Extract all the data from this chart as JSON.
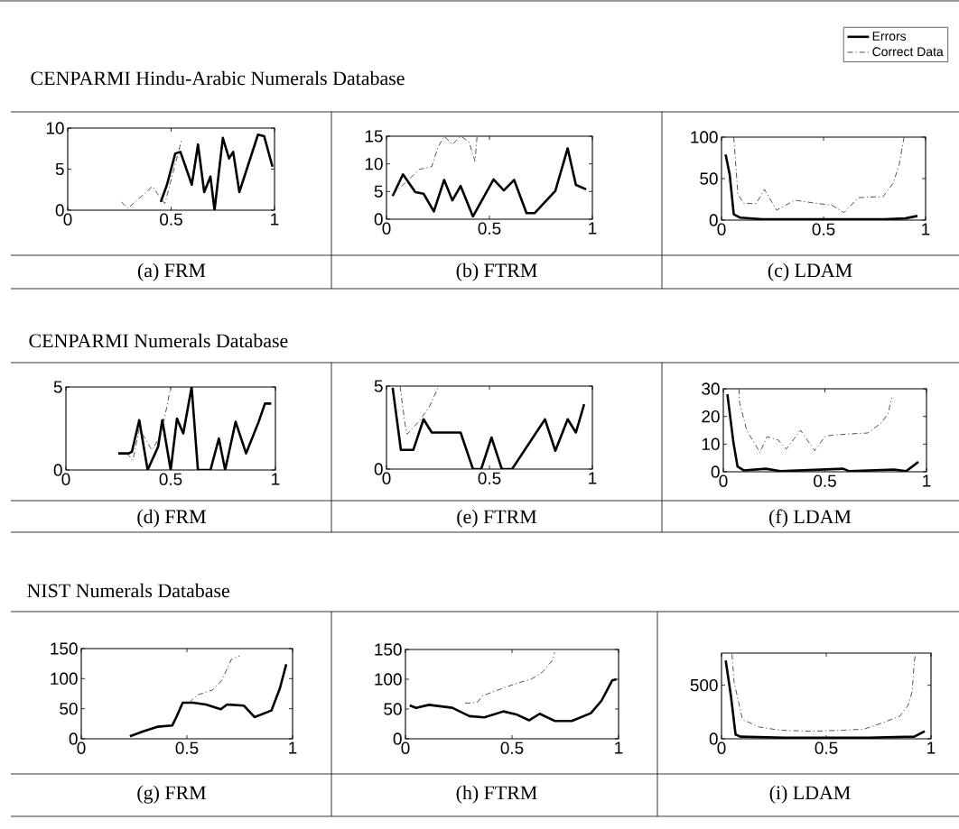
{
  "chart_data": [
    {
      "type": "line",
      "title": "CENPARMI Hindu-Arabic Numerals Database",
      "xlabel": "(a)  FRM",
      "xlim": [
        0,
        1
      ],
      "xticks": [
        0,
        0.5,
        1
      ],
      "ylim": [
        0,
        10
      ],
      "yticks": [
        0,
        5,
        10
      ],
      "series": [
        {
          "color": "#000000",
          "line_style": "solid",
          "x": [
            0.45,
            0.48,
            0.52,
            0.545,
            0.6,
            0.63,
            0.66,
            0.69,
            0.71,
            0.75,
            0.78,
            0.8,
            0.83,
            0.92,
            0.95,
            0.99
          ],
          "values": [
            1,
            3.1,
            6.9,
            7.1,
            3.1,
            8,
            2.2,
            4.1,
            0,
            8.8,
            6.3,
            7.1,
            2.2,
            9.2,
            9,
            5.3
          ]
        },
        {
          "color": "#404040",
          "line_style": "dashdot",
          "x": [
            0.26,
            0.29,
            0.41,
            0.44,
            0.47,
            0.55
          ],
          "values": [
            1,
            0.2,
            2.9,
            1.8,
            0.8,
            8.5
          ]
        }
      ]
    },
    {
      "type": "line",
      "xlabel": "(b)  FTRM",
      "xlim": [
        0,
        1
      ],
      "xticks": [
        0,
        0.5,
        1
      ],
      "ylim": [
        0,
        15
      ],
      "yticks": [
        0,
        5,
        10,
        15
      ],
      "series": [
        {
          "color": "#000000",
          "line_style": "solid",
          "x": [
            0.03,
            0.08,
            0.14,
            0.18,
            0.23,
            0.28,
            0.32,
            0.36,
            0.42,
            0.52,
            0.57,
            0.62,
            0.68,
            0.72,
            0.82,
            0.88,
            0.92,
            0.97
          ],
          "values": [
            4.2,
            8.1,
            4.9,
            4.6,
            1.4,
            7.1,
            3.4,
            6,
            0.5,
            7.2,
            5.2,
            7.1,
            1.1,
            1.1,
            5.1,
            12.8,
            6.2,
            5.4
          ]
        },
        {
          "color": "#404040",
          "line_style": "dashdot",
          "x": [
            0.03,
            0.06,
            0.16,
            0.22,
            0.25,
            0.28,
            0.32,
            0.36,
            0.4,
            0.43,
            0.44
          ],
          "values": [
            4.5,
            5.5,
            9,
            9.5,
            13,
            15,
            13.5,
            15,
            14,
            10.5,
            15
          ]
        }
      ]
    },
    {
      "type": "line",
      "xlabel": "(c)  LDAM",
      "legend": "top right",
      "xlim": [
        0,
        1
      ],
      "xticks": [
        0,
        0.5,
        1
      ],
      "ylim": [
        0,
        100
      ],
      "yticks": [
        0,
        50,
        100
      ],
      "series": [
        {
          "name": "Errors",
          "color": "#000000",
          "line_style": "solid",
          "x": [
            0.02,
            0.04,
            0.06,
            0.09,
            0.2,
            0.4,
            0.6,
            0.8,
            0.9,
            0.96
          ],
          "values": [
            79,
            55,
            7,
            3,
            1,
            1,
            1,
            1,
            2,
            5
          ]
        },
        {
          "name": "Correct Data",
          "color": "#404040",
          "line_style": "dashdot",
          "x": [
            0.06,
            0.08,
            0.11,
            0.17,
            0.21,
            0.27,
            0.36,
            0.47,
            0.54,
            0.6,
            0.67,
            0.75,
            0.79,
            0.84,
            0.87,
            0.89,
            0.895
          ],
          "values": [
            100,
            31,
            20,
            20,
            37,
            12,
            24,
            20,
            18,
            9,
            27,
            28,
            28,
            44,
            66,
            94,
            100
          ]
        }
      ]
    },
    {
      "type": "line",
      "title": "CENPARMI Numerals Database",
      "xlabel": "(d)  FRM",
      "xlim": [
        0,
        1
      ],
      "xticks": [
        0,
        0.5,
        1
      ],
      "ylim": [
        0,
        5
      ],
      "yticks": [
        0,
        5
      ],
      "series": [
        {
          "color": "#000000",
          "line_style": "solid",
          "x": [
            0.25,
            0.3,
            0.315,
            0.35,
            0.39,
            0.44,
            0.46,
            0.5,
            0.53,
            0.56,
            0.6,
            0.63,
            0.69,
            0.73,
            0.76,
            0.81,
            0.86,
            0.92,
            0.95,
            0.98
          ],
          "values": [
            1,
            1,
            1.1,
            3,
            0,
            1.4,
            3,
            0,
            3.1,
            2.2,
            5,
            0,
            0,
            1.9,
            0,
            2.9,
            1,
            2.9,
            4,
            4
          ]
        },
        {
          "color": "#404040",
          "line_style": "dashdot",
          "x": [
            0.29,
            0.32,
            0.35,
            0.41,
            0.45,
            0.48,
            0.5
          ],
          "values": [
            1,
            0.6,
            2.5,
            1.2,
            2,
            3.7,
            5
          ]
        }
      ]
    },
    {
      "type": "line",
      "xlabel": "(e)  FTRM",
      "xlim": [
        0,
        1
      ],
      "xticks": [
        0,
        0.5,
        1
      ],
      "ylim": [
        0,
        5
      ],
      "yticks": [
        0,
        5
      ],
      "series": [
        {
          "color": "#000000",
          "line_style": "solid",
          "x": [
            0.03,
            0.07,
            0.13,
            0.18,
            0.22,
            0.36,
            0.42,
            0.46,
            0.51,
            0.56,
            0.61,
            0.77,
            0.82,
            0.88,
            0.92,
            0.96
          ],
          "values": [
            4.9,
            1.15,
            1.15,
            3,
            2.2,
            2.2,
            0,
            0,
            1.9,
            0,
            0,
            3,
            1.1,
            3,
            2.2,
            3.9
          ]
        },
        {
          "color": "#404040",
          "line_style": "dashdot",
          "x": [
            0.066,
            0.09,
            0.1,
            0.16,
            0.21,
            0.25
          ],
          "values": [
            5,
            2.7,
            2.1,
            2.9,
            3.8,
            4.9
          ]
        }
      ]
    },
    {
      "type": "line",
      "xlabel": "(f)  LDAM",
      "xlim": [
        0,
        1
      ],
      "xticks": [
        0,
        0.5,
        1
      ],
      "ylim": [
        0,
        30
      ],
      "yticks": [
        0,
        10,
        20,
        30
      ],
      "series": [
        {
          "color": "#000000",
          "line_style": "solid",
          "x": [
            0.02,
            0.05,
            0.07,
            0.1,
            0.21,
            0.28,
            0.59,
            0.62,
            0.84,
            0.9,
            0.96
          ],
          "values": [
            28,
            10.4,
            1.9,
            0.5,
            1.1,
            0.2,
            1.1,
            0.2,
            0.8,
            0.2,
            3.6
          ]
        },
        {
          "color": "#404040",
          "line_style": "dashdot",
          "x": [
            0.077,
            0.08,
            0.115,
            0.18,
            0.215,
            0.27,
            0.31,
            0.38,
            0.45,
            0.5,
            0.53,
            0.65,
            0.71,
            0.78,
            0.81,
            0.83
          ],
          "values": [
            30,
            25,
            15,
            7,
            12.7,
            11.5,
            8.2,
            15,
            7.6,
            12.7,
            13.2,
            13.8,
            14,
            17.8,
            21,
            26.8
          ]
        }
      ]
    },
    {
      "type": "line",
      "title": "NIST Numerals Database",
      "xlabel": "(g)  FRM",
      "xlim": [
        0,
        1
      ],
      "xticks": [
        0,
        0.5,
        1
      ],
      "ylim": [
        0,
        150
      ],
      "yticks": [
        0,
        50,
        100,
        150
      ],
      "series": [
        {
          "color": "#000000",
          "line_style": "solid",
          "x": [
            0.23,
            0.29,
            0.36,
            0.43,
            0.45,
            0.48,
            0.53,
            0.59,
            0.66,
            0.69,
            0.77,
            0.82,
            0.9,
            0.94,
            0.97
          ],
          "values": [
            4,
            12,
            20,
            22,
            36,
            60,
            60,
            57,
            49,
            57,
            55,
            36,
            47,
            84,
            124
          ]
        },
        {
          "color": "#404040",
          "line_style": "dashdot",
          "x": [
            0.51,
            0.55,
            0.62,
            0.66,
            0.69,
            0.71,
            0.75
          ],
          "values": [
            60,
            73,
            81,
            95,
            116,
            132,
            138
          ]
        }
      ]
    },
    {
      "type": "line",
      "xlabel": "(h)  FTRM",
      "xlim": [
        0,
        1
      ],
      "xticks": [
        0,
        0.5,
        1
      ],
      "ylim": [
        0,
        150
      ],
      "yticks": [
        0,
        50,
        100,
        150
      ],
      "series": [
        {
          "color": "#000000",
          "line_style": "solid",
          "x": [
            0.02,
            0.05,
            0.11,
            0.22,
            0.3,
            0.37,
            0.46,
            0.52,
            0.58,
            0.63,
            0.7,
            0.78,
            0.87,
            0.92,
            0.97,
            0.99
          ],
          "values": [
            56,
            52,
            57,
            52,
            38,
            36,
            46,
            41,
            31,
            42,
            30,
            30,
            43,
            64,
            98,
            100
          ]
        },
        {
          "color": "#404040",
          "line_style": "dashdot",
          "x": [
            0.28,
            0.31,
            0.34,
            0.36,
            0.42,
            0.48,
            0.54,
            0.59,
            0.64,
            0.69,
            0.7
          ],
          "values": [
            60,
            60,
            62,
            72,
            80,
            88,
            95,
            100,
            111,
            132,
            145
          ]
        }
      ]
    },
    {
      "type": "line",
      "xlabel": "(i)  LDAM",
      "xlim": [
        0,
        1
      ],
      "xticks": [
        0,
        0.5,
        1
      ],
      "ylim": [
        0,
        800
      ],
      "yticks": [
        0,
        500
      ],
      "series": [
        {
          "color": "#000000",
          "line_style": "solid",
          "x": [
            0.02,
            0.045,
            0.067,
            0.09,
            0.3,
            0.5,
            0.7,
            0.92,
            0.97
          ],
          "values": [
            730,
            400,
            40,
            20,
            10,
            10,
            10,
            20,
            70
          ]
        },
        {
          "color": "#404040",
          "line_style": "dashdot",
          "x": [
            0.05,
            0.06,
            0.1,
            0.18,
            0.28,
            0.43,
            0.58,
            0.68,
            0.77,
            0.85,
            0.89,
            0.91,
            0.92,
            0.925
          ],
          "values": [
            790,
            530,
            180,
            110,
            80,
            70,
            80,
            90,
            150,
            210,
            310,
            440,
            720,
            780
          ]
        }
      ]
    }
  ]
}
